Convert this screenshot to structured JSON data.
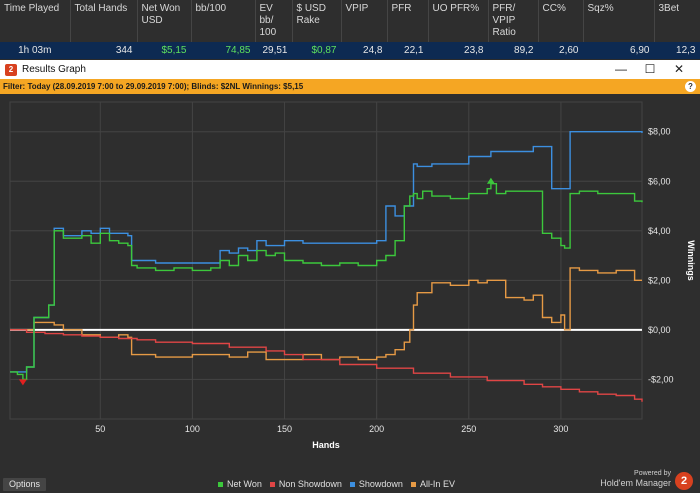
{
  "stats_table": {
    "headers": [
      "Time Played",
      "Total Hands",
      "Net Won USD",
      "bb/100",
      "EV bb/ 100",
      "$ USD Rake",
      "VPIP",
      "PFR",
      "UO PFR%",
      "PFR/ VPIP Ratio",
      "CC%",
      "Sqz%",
      "3Bet"
    ],
    "row": [
      "1h 03m",
      "344",
      "$5,15",
      "74,85",
      "29,51",
      "$0,87",
      "24,8",
      "22,1",
      "23,8",
      "89,2",
      "2,60",
      "6,90",
      "12,3"
    ]
  },
  "window": {
    "title": "Results Graph",
    "minimize_glyph": "—",
    "maximize_glyph": "☐",
    "close_glyph": "✕",
    "help_glyph": "?"
  },
  "filter": {
    "text": "Filter: Today (28.09.2019 7:00 to 29.09.2019 7:00); Blinds: $2NL Winnings: $5,15"
  },
  "bottom": {
    "options_label": "Options",
    "powered_by": "Powered by",
    "brand": "Hold'em Manager",
    "logo_glyph": "2"
  },
  "chart_data": {
    "type": "line",
    "xlabel": "Hands",
    "ylabel": "Winnings",
    "xlim": [
      1,
      344
    ],
    "ylim": [
      -3.6,
      9.2
    ],
    "x_ticks": [
      50,
      100,
      150,
      200,
      250,
      300
    ],
    "y_ticks": [
      8,
      6,
      4,
      2,
      0,
      -2
    ],
    "y_tick_labels": [
      "$8,00",
      "$6,00",
      "$4,00",
      "$2,00",
      "$0,00",
      "-$2,00"
    ],
    "grid": true,
    "legend_position": "bottom",
    "zero_line_color": "#ffffff",
    "series": [
      {
        "name": "Net Won",
        "color": "#3cc83c",
        "x": [
          1,
          5,
          8,
          10,
          14,
          20,
          22,
          25,
          30,
          40,
          45,
          50,
          55,
          60,
          65,
          67,
          70,
          80,
          90,
          100,
          110,
          115,
          120,
          125,
          130,
          135,
          140,
          145,
          150,
          160,
          170,
          180,
          190,
          200,
          205,
          210,
          215,
          218,
          220,
          222,
          225,
          230,
          240,
          250,
          255,
          260,
          262,
          265,
          270,
          280,
          290,
          295,
          300,
          302,
          305,
          310,
          320,
          330,
          340,
          344
        ],
        "y": [
          -1.7,
          -1.8,
          -2.0,
          -1.5,
          0.5,
          0.5,
          1.0,
          4.0,
          3.7,
          3.8,
          3.5,
          3.9,
          3.6,
          3.5,
          3.4,
          2.6,
          2.5,
          2.4,
          2.5,
          2.4,
          2.5,
          2.8,
          2.6,
          3.0,
          2.8,
          3.2,
          3.0,
          3.1,
          2.8,
          2.7,
          2.6,
          2.7,
          2.6,
          2.8,
          3.0,
          3.6,
          5.0,
          5.4,
          5.5,
          5.3,
          5.6,
          5.4,
          5.3,
          5.5,
          5.5,
          5.7,
          5.9,
          5.5,
          5.6,
          5.6,
          3.9,
          3.7,
          3.4,
          3.3,
          5.5,
          5.6,
          5.5,
          5.5,
          5.2,
          5.15
        ]
      },
      {
        "name": "Non Showdown",
        "color": "#e04545",
        "x": [
          1,
          10,
          20,
          30,
          40,
          50,
          60,
          70,
          80,
          100,
          120,
          140,
          150,
          160,
          180,
          200,
          220,
          240,
          260,
          280,
          290,
          300,
          310,
          320,
          330,
          340,
          344
        ],
        "y": [
          0.0,
          -0.1,
          -0.15,
          -0.2,
          -0.25,
          -0.3,
          -0.35,
          -0.4,
          -0.5,
          -0.55,
          -0.7,
          -0.85,
          -1.0,
          -1.2,
          -1.4,
          -1.55,
          -1.75,
          -1.9,
          -2.05,
          -2.2,
          -2.3,
          -2.4,
          -2.5,
          -2.6,
          -2.65,
          -2.8,
          -2.9
        ]
      },
      {
        "name": "Showdown",
        "color": "#3c8fe0",
        "x": [
          1,
          10,
          14,
          20,
          22,
          25,
          30,
          40,
          45,
          50,
          55,
          65,
          67,
          80,
          100,
          110,
          115,
          120,
          125,
          130,
          135,
          140,
          150,
          160,
          180,
          200,
          205,
          210,
          215,
          220,
          222,
          230,
          240,
          250,
          262,
          270,
          285,
          290,
          295,
          300,
          305,
          310,
          330,
          344
        ],
        "y": [
          -1.7,
          -1.5,
          0.5,
          0.5,
          1.0,
          4.1,
          3.8,
          4.0,
          3.9,
          4.1,
          3.9,
          3.8,
          2.8,
          2.7,
          2.7,
          2.7,
          3.2,
          3.1,
          3.3,
          3.2,
          3.6,
          3.4,
          3.6,
          3.5,
          3.5,
          3.6,
          5.0,
          4.6,
          5.0,
          6.7,
          6.6,
          6.7,
          6.7,
          7.0,
          7.2,
          7.2,
          7.4,
          7.4,
          5.7,
          5.7,
          8.0,
          8.0,
          8.0,
          7.95
        ]
      },
      {
        "name": "All-In EV",
        "color": "#e69a45",
        "x": [
          1,
          10,
          14,
          20,
          25,
          30,
          40,
          50,
          60,
          65,
          67,
          70,
          80,
          100,
          110,
          120,
          130,
          140,
          150,
          160,
          170,
          180,
          190,
          200,
          205,
          210,
          215,
          218,
          220,
          222,
          230,
          240,
          250,
          255,
          260,
          270,
          280,
          285,
          290,
          295,
          300,
          302,
          305,
          310,
          320,
          330,
          340,
          344
        ],
        "y": [
          0.0,
          0.0,
          0.3,
          0.3,
          0.2,
          0.0,
          -0.2,
          -0.3,
          -0.2,
          -0.3,
          -1.0,
          -1.0,
          -1.1,
          -1.0,
          -1.0,
          -1.1,
          -0.9,
          -1.2,
          -1.2,
          -1.0,
          -1.2,
          -1.1,
          -1.2,
          -1.1,
          -1.0,
          -0.8,
          -0.5,
          0.0,
          1.0,
          1.5,
          1.9,
          1.8,
          2.0,
          1.9,
          2.0,
          1.3,
          1.2,
          1.4,
          0.5,
          0.3,
          0.6,
          0.0,
          2.5,
          2.4,
          2.3,
          2.4,
          2.0,
          2.0
        ]
      }
    ],
    "markers": [
      {
        "name": "minimum",
        "x": 8,
        "y": -2.0,
        "color": "#e02020",
        "shape": "triangle-down"
      },
      {
        "name": "maximum",
        "x": 262,
        "y": 5.9,
        "color": "#3cc83c",
        "shape": "triangle-up"
      }
    ]
  }
}
